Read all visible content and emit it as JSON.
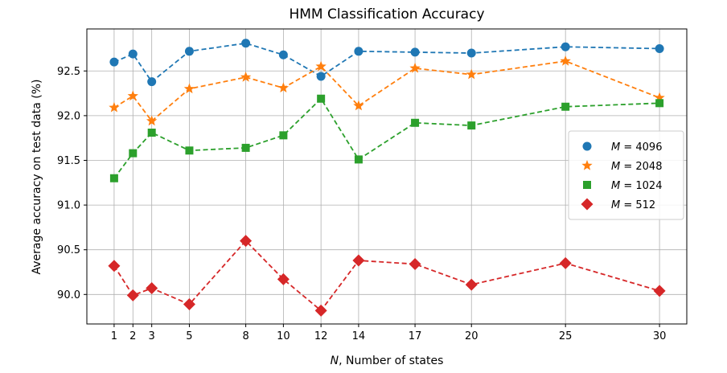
{
  "chart_data": {
    "type": "line",
    "title": "HMM Classification Accuracy",
    "xlabel": "N, Number of states",
    "xlabel_italic_part": "N",
    "xlabel_rest": ", Number of states",
    "ylabel": "Average accuracy on test data (%)",
    "x": [
      1,
      2,
      3,
      5,
      8,
      10,
      12,
      14,
      17,
      20,
      25,
      30
    ],
    "xticks": [
      "1",
      "2",
      "3",
      "5",
      "8",
      "10",
      "12",
      "14",
      "17",
      "20",
      "25",
      "30"
    ],
    "yticks": [
      "90.0",
      "90.5",
      "91.0",
      "91.5",
      "92.0",
      "92.5"
    ],
    "xlim": [
      -0.45,
      31.45
    ],
    "ylim": [
      89.67,
      92.97
    ],
    "grid": true,
    "legend_position": "center-right",
    "series": [
      {
        "name": "M = 4096",
        "legend_var": "M",
        "legend_value": "= 4096",
        "marker": "circle",
        "color": "#1f77b4",
        "values": [
          92.6,
          92.69,
          92.38,
          92.72,
          92.81,
          92.68,
          92.44,
          92.72,
          92.71,
          92.7,
          92.77,
          92.75
        ]
      },
      {
        "name": "M = 2048",
        "legend_var": "M",
        "legend_value": "= 2048",
        "marker": "star",
        "color": "#ff7f0e",
        "values": [
          92.09,
          92.22,
          91.94,
          92.3,
          92.43,
          92.31,
          92.55,
          92.11,
          92.53,
          92.46,
          92.61,
          92.2
        ]
      },
      {
        "name": "M = 1024",
        "legend_var": "M",
        "legend_value": "= 1024",
        "marker": "square",
        "color": "#2ca02c",
        "values": [
          91.3,
          91.58,
          91.81,
          91.61,
          91.64,
          91.78,
          92.19,
          91.51,
          91.92,
          91.89,
          92.1,
          92.14
        ]
      },
      {
        "name": "M = 512",
        "legend_var": "M",
        "legend_value": "= 512",
        "marker": "diamond",
        "color": "#d62728",
        "values": [
          90.32,
          89.99,
          90.07,
          89.89,
          90.6,
          90.17,
          89.82,
          90.38,
          90.34,
          90.11,
          90.35,
          90.04
        ]
      }
    ]
  }
}
